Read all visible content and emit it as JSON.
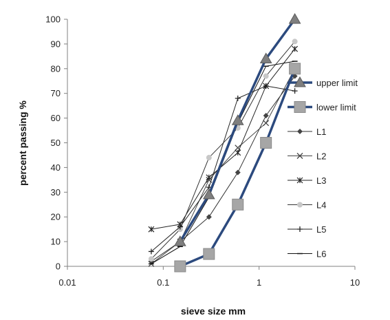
{
  "chart_data": {
    "type": "line",
    "x_scale": "log",
    "xlabel": "sieve size mm",
    "ylabel": "percent passing %",
    "xlim": [
      0.01,
      10
    ],
    "ylim": [
      0,
      100
    ],
    "x_ticks": [
      0.01,
      0.1,
      1,
      10
    ],
    "x_tick_labels": [
      "0.01",
      "0.1",
      "1",
      "10"
    ],
    "y_ticks": [
      0,
      10,
      20,
      30,
      40,
      50,
      60,
      70,
      80,
      90,
      100
    ],
    "y_tick_labels": [
      "0",
      "10",
      "20",
      "30",
      "40",
      "50",
      "60",
      "70",
      "80",
      "90",
      "100"
    ],
    "grid": false,
    "legend_position": "right",
    "series": [
      {
        "name": "upper limit",
        "x": [
          0.15,
          0.3,
          0.6,
          1.18,
          2.36
        ],
        "values": [
          10,
          29,
          59,
          84,
          100
        ],
        "color": "#2c4a7e",
        "marker": "triangle",
        "marker_color": "#7f7f7f",
        "width": 3.5
      },
      {
        "name": "lower limit",
        "x": [
          0.15,
          0.3,
          0.6,
          1.18,
          2.36
        ],
        "values": [
          0,
          5,
          25,
          50,
          80
        ],
        "color": "#2c4a7e",
        "marker": "square",
        "marker_color": "#a6a6a6",
        "width": 3.5
      },
      {
        "name": "L1",
        "x": [
          0.075,
          0.15,
          0.3,
          0.6,
          1.18,
          2.36
        ],
        "values": [
          2,
          10,
          20,
          38,
          61,
          77
        ],
        "color": "#333333",
        "marker": "diamond",
        "marker_color": "#444444",
        "width": 1
      },
      {
        "name": "L2",
        "x": [
          0.075,
          0.15,
          0.3,
          0.6,
          1.18,
          2.36
        ],
        "values": [
          1,
          10,
          35,
          48,
          58,
          80
        ],
        "color": "#444444",
        "marker": "x",
        "marker_color": "#444444",
        "width": 1
      },
      {
        "name": "L3",
        "x": [
          0.075,
          0.15,
          0.3,
          0.6,
          1.18,
          2.36
        ],
        "values": [
          15,
          17,
          36,
          46,
          73,
          88
        ],
        "color": "#222222",
        "marker": "asterisk",
        "marker_color": "#222222",
        "width": 1
      },
      {
        "name": "L4",
        "x": [
          0.075,
          0.15,
          0.3,
          0.6,
          1.18,
          2.36
        ],
        "values": [
          3,
          15,
          44,
          56,
          77,
          91
        ],
        "color": "#333333",
        "marker": "circle",
        "marker_color": "#c8c8c8",
        "width": 1
      },
      {
        "name": "L5",
        "x": [
          0.075,
          0.15,
          0.3,
          0.6,
          1.18,
          2.36
        ],
        "values": [
          6,
          16,
          32,
          68,
          73,
          71
        ],
        "color": "#222222",
        "marker": "plus",
        "marker_color": "#222222",
        "width": 1
      },
      {
        "name": "L6",
        "x": [
          0.075,
          0.15,
          0.3,
          0.6,
          1.18,
          2.36
        ],
        "values": [
          1,
          8,
          28,
          58,
          81,
          83
        ],
        "color": "#111111",
        "marker": "dash",
        "marker_color": "#111111",
        "width": 1
      }
    ]
  }
}
